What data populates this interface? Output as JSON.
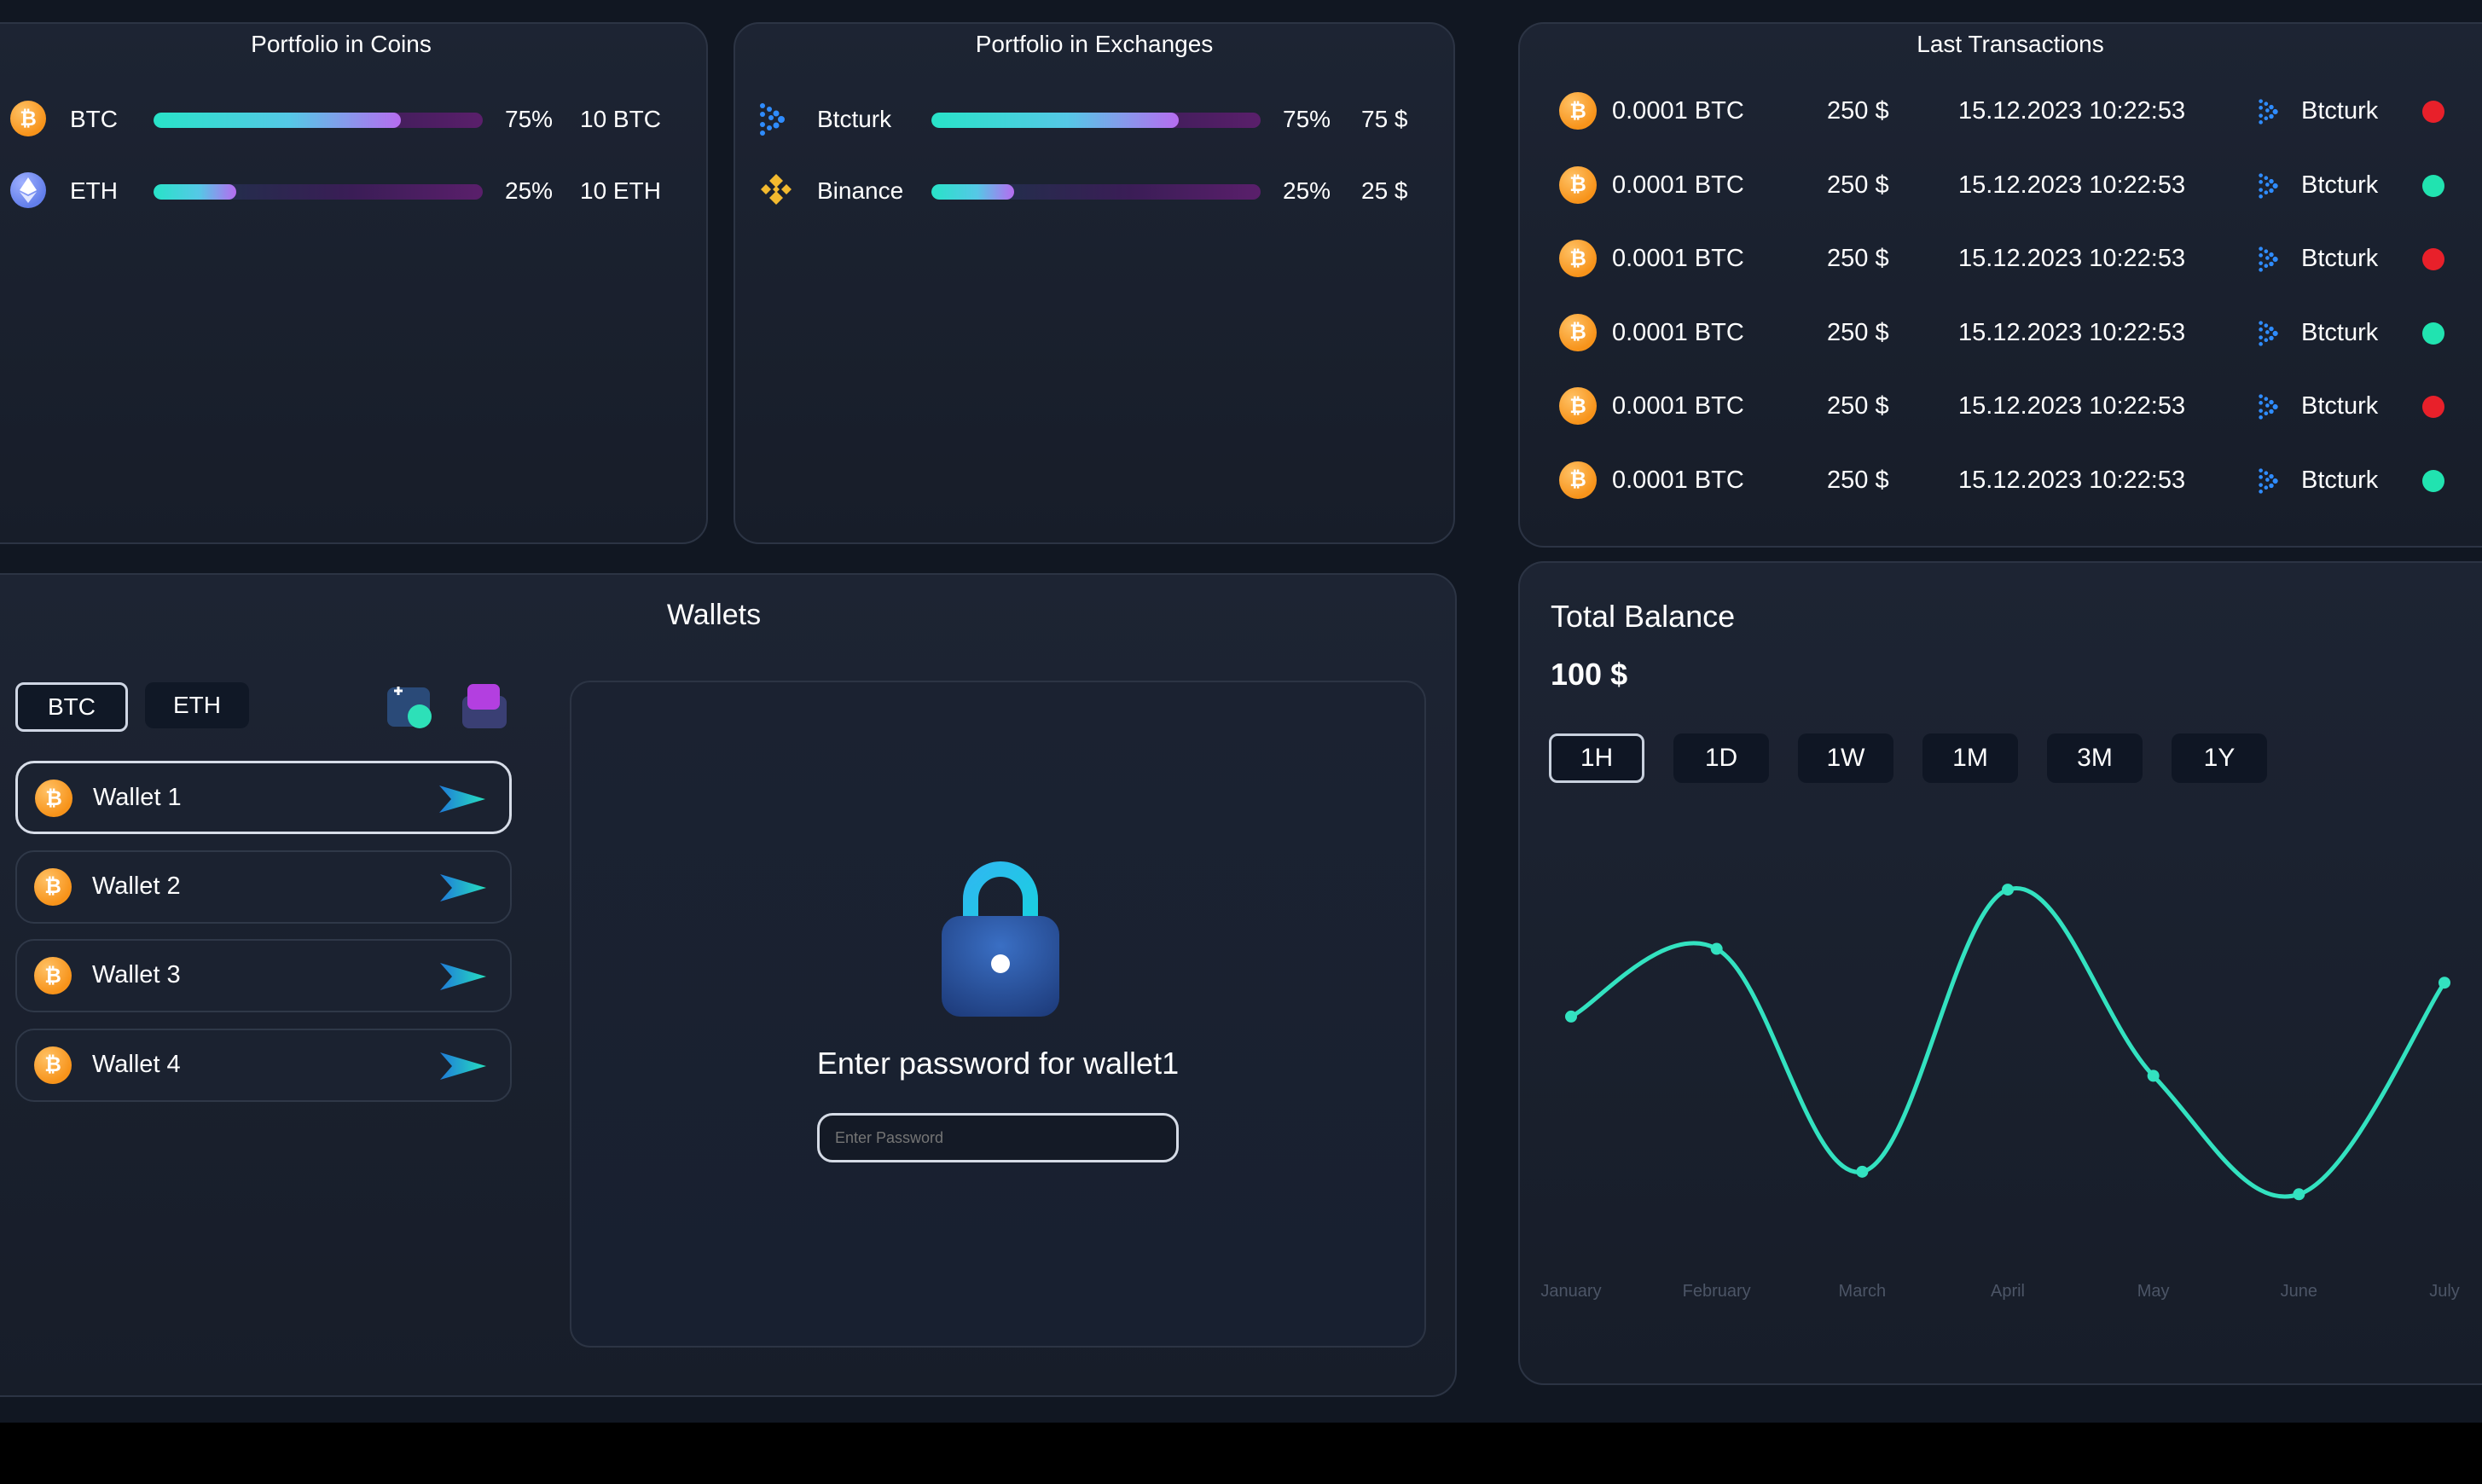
{
  "coins_card": {
    "title": "Portfolio in Coins",
    "rows": [
      {
        "symbol": "BTC",
        "icon": "bitcoin-icon",
        "percent": "75%",
        "fraction": 0.75,
        "amount": "10 BTC"
      },
      {
        "symbol": "ETH",
        "icon": "ethereum-icon",
        "percent": "25%",
        "fraction": 0.25,
        "amount": "10 ETH"
      }
    ]
  },
  "exchanges_card": {
    "title": "Portfolio in Exchanges",
    "rows": [
      {
        "name": "Btcturk",
        "icon": "btcturk-icon",
        "percent": "75%",
        "fraction": 0.75,
        "amount": "75 $"
      },
      {
        "name": "Binance",
        "icon": "binance-icon",
        "percent": "25%",
        "fraction": 0.25,
        "amount": "25 $"
      }
    ]
  },
  "transactions_card": {
    "title": "Last Transactions",
    "rows": [
      {
        "amount": "0.0001 BTC",
        "usd": "250 $",
        "datetime": "15.12.2023 10:22:53",
        "exchange": "Btcturk",
        "status": "failed"
      },
      {
        "amount": "0.0001 BTC",
        "usd": "250 $",
        "datetime": "15.12.2023 10:22:53",
        "exchange": "Btcturk",
        "status": "success"
      },
      {
        "amount": "0.0001 BTC",
        "usd": "250 $",
        "datetime": "15.12.2023 10:22:53",
        "exchange": "Btcturk",
        "status": "failed"
      },
      {
        "amount": "0.0001 BTC",
        "usd": "250 $",
        "datetime": "15.12.2023 10:22:53",
        "exchange": "Btcturk",
        "status": "success"
      },
      {
        "amount": "0.0001 BTC",
        "usd": "250 $",
        "datetime": "15.12.2023 10:22:53",
        "exchange": "Btcturk",
        "status": "failed"
      },
      {
        "amount": "0.0001 BTC",
        "usd": "250 $",
        "datetime": "15.12.2023 10:22:53",
        "exchange": "Btcturk",
        "status": "success"
      }
    ],
    "status_colors": {
      "failed": "#e8202a",
      "success": "#21e3b0"
    }
  },
  "wallets_card": {
    "title": "Wallets",
    "tabs": [
      {
        "label": "BTC",
        "active": true
      },
      {
        "label": "ETH",
        "active": false
      }
    ],
    "add_wallet_icon": "add-wallet-icon",
    "folder_icon": "folder-icon",
    "wallets": [
      {
        "label": "Wallet 1",
        "active": true
      },
      {
        "label": "Wallet 2",
        "active": false
      },
      {
        "label": "Wallet 3",
        "active": false
      },
      {
        "label": "Wallet 4",
        "active": false
      }
    ],
    "lock_panel": {
      "icon": "lock-icon",
      "prompt": "Enter password for wallet1",
      "password_placeholder": "Enter Password"
    }
  },
  "balance_card": {
    "title": "Total Balance",
    "amount": "100 $",
    "ranges": [
      {
        "label": "1H",
        "active": true
      },
      {
        "label": "1D",
        "active": false
      },
      {
        "label": "1W",
        "active": false
      },
      {
        "label": "1M",
        "active": false
      },
      {
        "label": "3M",
        "active": false
      },
      {
        "label": "1Y",
        "active": false
      }
    ]
  },
  "chart_data": {
    "type": "line",
    "categories": [
      "January",
      "February",
      "March",
      "April",
      "May",
      "June",
      "July"
    ],
    "series": [
      {
        "values": [
          0.55,
          0.79,
          0.0,
          1.0,
          0.34,
          -0.08,
          0.67
        ]
      }
    ],
    "ylim": [
      -0.2,
      1.1
    ],
    "grid": false,
    "line_color": "#33e2c0"
  }
}
